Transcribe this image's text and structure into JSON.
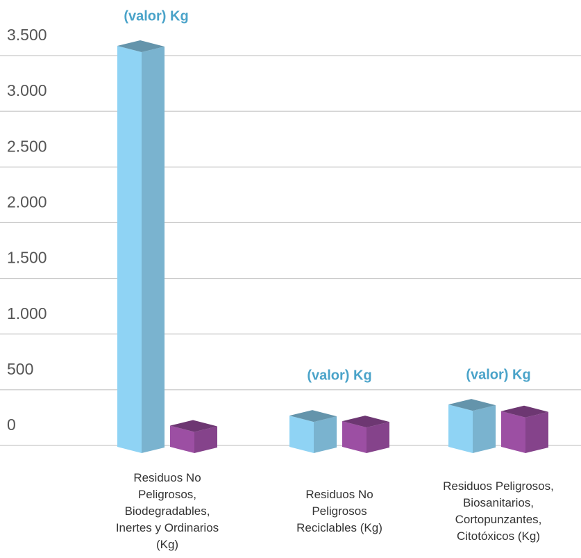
{
  "chart_data": {
    "type": "bar3d",
    "categories": [
      "Residuos No Peligrosos, Biodegradables, Inertes y Ordinarios (Kg)",
      "Residuos No Peligrosos Reciclables (Kg)",
      "Residuos Peligrosos, Biosanitarios, Cortopunzantes, Citotóxicos (Kg)"
    ],
    "series": [
      {
        "color": "#8fd3f4",
        "values": [
          3600,
          280,
          380
        ]
      },
      {
        "color": "#9c4fa3",
        "values": [
          190,
          230,
          320
        ]
      }
    ],
    "annotations": [
      "(valor) Kg",
      "(valor) Kg",
      "(valor) Kg"
    ],
    "annotation_color": "#4aa3c9",
    "ylim": [
      0,
      3500
    ],
    "yticks": [
      0,
      500,
      {
        "value": 1000,
        "label": "1.000"
      },
      {
        "value": 1500,
        "label": "1.500"
      },
      {
        "value": 2000,
        "label": "2.000"
      },
      {
        "value": 2500,
        "label": "2.500"
      },
      {
        "value": 3000,
        "label": "3.000"
      },
      {
        "value": 3500,
        "label": "3.500"
      }
    ],
    "grid": true
  }
}
